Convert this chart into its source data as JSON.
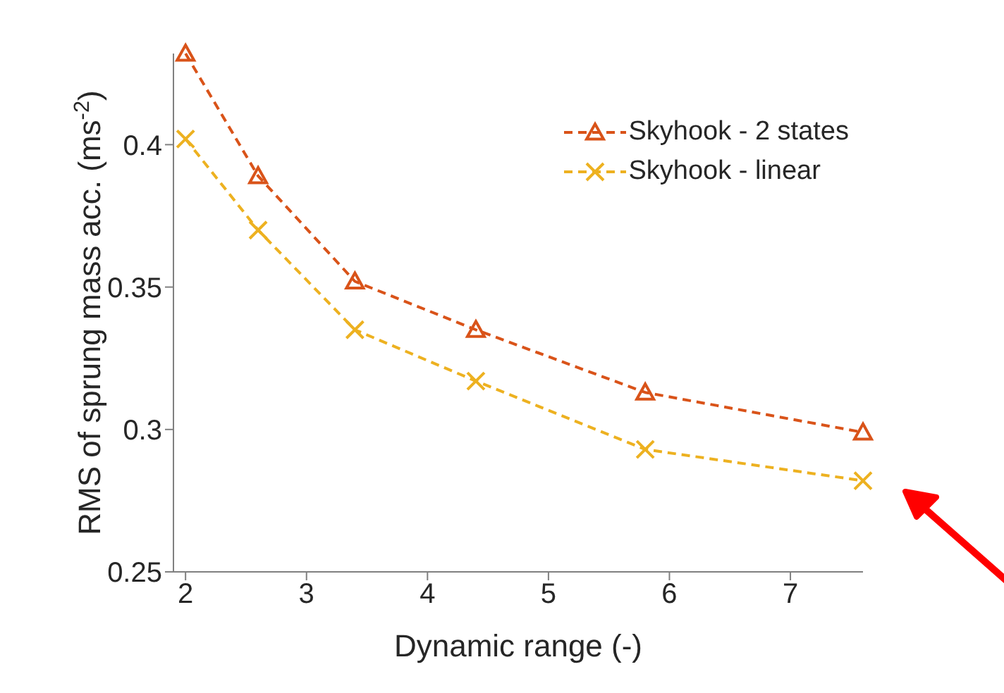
{
  "chart_data": {
    "type": "line",
    "xlabel": "Dynamic range (-)",
    "ylabel": "RMS of sprung mass acc. (ms$^{-2}$)",
    "x": [
      2,
      2.6,
      3.4,
      4.4,
      5.8,
      7.6
    ],
    "series": [
      {
        "name": "Skyhook - 2 states",
        "color": "#d95319",
        "marker": "triangle",
        "values": [
          0.432,
          0.389,
          0.352,
          0.335,
          0.313,
          0.299
        ]
      },
      {
        "name": "Skyhook - linear",
        "color": "#edb120",
        "marker": "cross",
        "values": [
          0.402,
          0.37,
          0.335,
          0.317,
          0.293,
          0.282
        ]
      }
    ],
    "xlim": [
      1.9,
      7.6
    ],
    "ylim": [
      0.25,
      0.432
    ],
    "xticks": [
      2,
      3,
      4,
      5,
      6,
      7
    ],
    "yticks": [
      0.25,
      0.3,
      0.35,
      0.4
    ],
    "grid": false,
    "legend": "top right",
    "line_style": "dashed"
  }
}
